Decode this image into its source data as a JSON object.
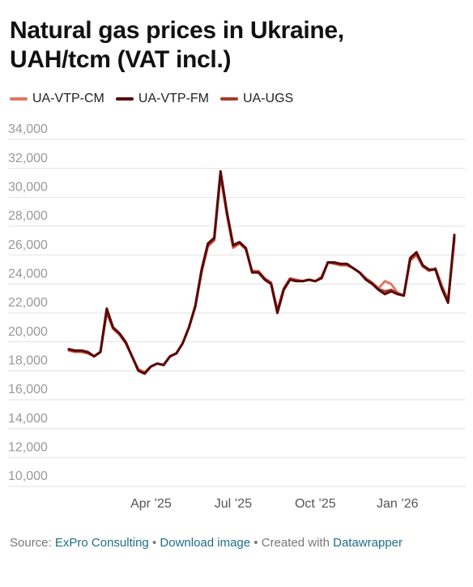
{
  "chart_data": {
    "type": "line",
    "title": "Natural gas prices in Ukraine, UAH/tcm (VAT incl.)",
    "categories": [
      null,
      null,
      null,
      null,
      null,
      null,
      null,
      null,
      null,
      null,
      null,
      null,
      null,
      "Apr ’25",
      null,
      null,
      null,
      null,
      null,
      null,
      null,
      null,
      null,
      null,
      null,
      null,
      "Jul ’25",
      null,
      null,
      null,
      null,
      null,
      null,
      null,
      null,
      null,
      null,
      null,
      null,
      "Oct ’25",
      null,
      null,
      null,
      null,
      null,
      null,
      null,
      null,
      null,
      null,
      null,
      null,
      "Jan ’26",
      null,
      null,
      null,
      null,
      null,
      null,
      null,
      null,
      null
    ],
    "series": [
      {
        "name": "UA-VTP-CM",
        "color": "#e07860",
        "values": [
          19400,
          19300,
          19300,
          19200,
          19000,
          19300,
          22000,
          20900,
          20500,
          19900,
          19000,
          18100,
          17900,
          18300,
          18500,
          18400,
          19000,
          19200,
          19900,
          21000,
          22400,
          24800,
          26600,
          27000,
          31500,
          28800,
          26500,
          26800,
          26400,
          24900,
          24900,
          24400,
          24100,
          22200,
          23700,
          24400,
          24300,
          24200,
          24300,
          24200,
          24500,
          25500,
          25400,
          25300,
          25300,
          25100,
          24800,
          24400,
          24100,
          23700,
          24200,
          24000,
          23400,
          23200,
          25600,
          26000,
          25200,
          24900,
          25100,
          23900,
          22900,
          27000
        ]
      },
      {
        "name": "UA-VTP-FM",
        "color": "#5a0a0a",
        "values": [
          19500,
          19400,
          19400,
          19300,
          19000,
          19300,
          22300,
          21000,
          20600,
          20000,
          19000,
          18000,
          17800,
          18300,
          18500,
          18400,
          19000,
          19200,
          19900,
          21000,
          22500,
          25000,
          26800,
          27200,
          31800,
          29000,
          26700,
          26900,
          26500,
          24800,
          24800,
          24300,
          24000,
          22000,
          23600,
          24300,
          24200,
          24200,
          24300,
          24200,
          24400,
          25500,
          25500,
          25400,
          25400,
          25100,
          24800,
          24300,
          24000,
          23600,
          23300,
          23500,
          23300,
          23200,
          25800,
          26200,
          25300,
          25000,
          25000,
          23700,
          22700,
          27400
        ]
      },
      {
        "name": "UA-UGS",
        "color": "#a63a28",
        "values": [
          19450,
          19350,
          19350,
          19250,
          19000,
          19300,
          22100,
          20950,
          20550,
          19950,
          19000,
          18050,
          17850,
          18300,
          18500,
          18400,
          19000,
          19200,
          19900,
          21000,
          22450,
          24900,
          26700,
          27100,
          31650,
          28900,
          26600,
          26850,
          26450,
          24850,
          24850,
          24350,
          24050,
          22100,
          23650,
          24350,
          24250,
          24200,
          24300,
          24200,
          24450,
          25500,
          25450,
          25350,
          25350,
          25100,
          24800,
          24350,
          24050,
          23650,
          23500,
          23600,
          23350,
          23200,
          25700,
          26100,
          25250,
          24950,
          25050,
          23800,
          22800,
          27200
        ]
      }
    ],
    "ylim": [
      10000,
      34000
    ],
    "yticks": [
      {
        "value": 10000,
        "label": "10,000"
      },
      {
        "value": 12000,
        "label": "12,000"
      },
      {
        "value": 14000,
        "label": "14,000"
      },
      {
        "value": 16000,
        "label": "16,000"
      },
      {
        "value": 18000,
        "label": "18,000"
      },
      {
        "value": 20000,
        "label": "20,000"
      },
      {
        "value": 22000,
        "label": "22,000"
      },
      {
        "value": 24000,
        "label": "24,000"
      },
      {
        "value": 26000,
        "label": "26,000"
      },
      {
        "value": 28000,
        "label": "28,000"
      },
      {
        "value": 30000,
        "label": "30,000"
      },
      {
        "value": 32000,
        "label": "32,000"
      },
      {
        "value": 34000,
        "label": "34,000"
      }
    ],
    "grid": true,
    "footer": {
      "source_label": "Source:",
      "source": "ExPro Consulting",
      "separator": "•",
      "download": "Download image",
      "created": "Created with",
      "tool": "Datawrapper"
    }
  }
}
